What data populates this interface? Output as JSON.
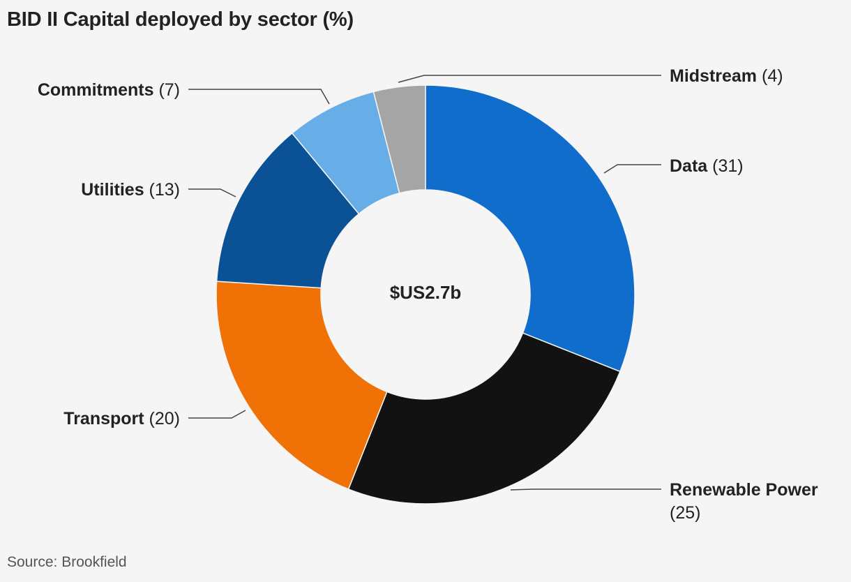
{
  "chart_data": {
    "type": "pie",
    "title": "BID II Capital deployed by sector (%)",
    "center_label": "$US2.7b",
    "source": "Source: Brookfield",
    "slices": [
      {
        "name": "Data",
        "value": 31,
        "color": "#116dcb"
      },
      {
        "name": "Renewable Power",
        "value": 25,
        "color": "#121212"
      },
      {
        "name": "Transport",
        "value": 20,
        "color": "#f07206"
      },
      {
        "name": "Utilities",
        "value": 13,
        "color": "#0a5196"
      },
      {
        "name": "Commitments",
        "value": 7,
        "color": "#67ade7"
      },
      {
        "name": "Midstream",
        "value": 4,
        "color": "#a5a5a5"
      }
    ]
  }
}
